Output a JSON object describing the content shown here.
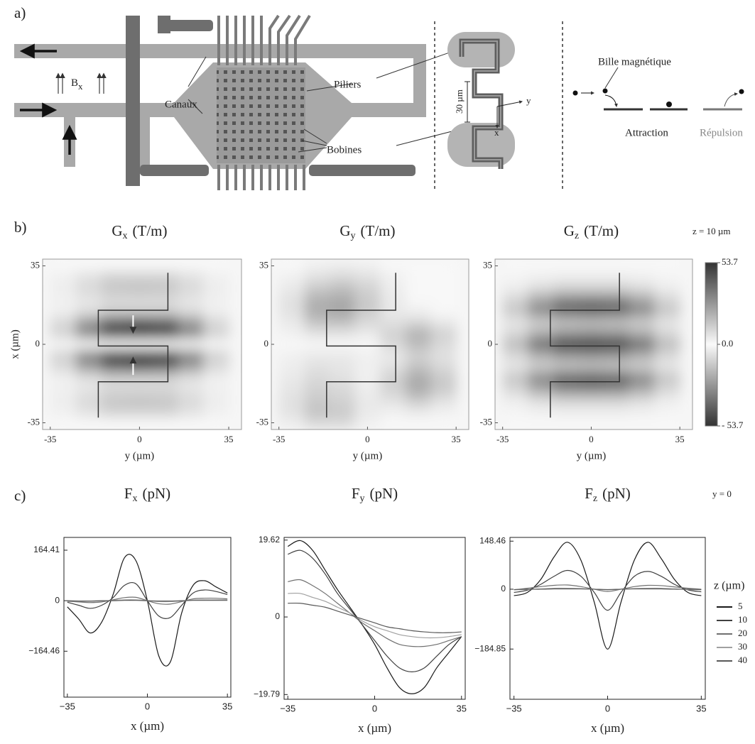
{
  "panel_a": {
    "label": "a)",
    "channels": "Canaux",
    "pillars": "Piliers",
    "coils": "Bobines",
    "field": {
      "symbol": "B",
      "sub": "x"
    },
    "scale": "30 µm",
    "axis_y": "y",
    "axis_x": "x",
    "bead": "Bille magnétique",
    "attraction": "Attraction",
    "repulsion": "Répulsion"
  },
  "panel_b": {
    "label": "b)",
    "annotation": "z = 10 µm",
    "colorbar": {
      "lim": [
        -53.7,
        53.7
      ],
      "ticks": [
        53.7,
        {
          "value": 0,
          "label": "0.0"
        },
        {
          "value": -53.7,
          "label": "- 53.7"
        }
      ]
    }
  },
  "panel_c": {
    "label": "c)",
    "annotation": "y = 0"
  },
  "chart_data": [
    {
      "type": "heatmap",
      "title": {
        "symbol": "G",
        "sub": "x",
        "unit": "(T/m)"
      },
      "xlabel": "y (µm)",
      "ylabel": "x (µm)",
      "x": [
        -30,
        -20,
        -10,
        0,
        10,
        20,
        30
      ],
      "y": [
        35,
        30,
        25,
        20,
        15,
        10,
        5,
        0,
        -5,
        -10,
        -15,
        -20,
        -25,
        -30,
        -35
      ],
      "z": [
        [
          0,
          0,
          0,
          0,
          0,
          0,
          0
        ],
        [
          2,
          6,
          10,
          10,
          10,
          6,
          2
        ],
        [
          3,
          8,
          13,
          14,
          13,
          8,
          3
        ],
        [
          2,
          5,
          8,
          8,
          8,
          5,
          2
        ],
        [
          -2,
          -6,
          -10,
          -10,
          -10,
          -6,
          -2
        ],
        [
          -8,
          -24,
          -38,
          -40,
          -38,
          -24,
          -8
        ],
        [
          -10,
          -30,
          -48,
          -50,
          -48,
          -30,
          -10
        ],
        [
          0,
          0,
          0,
          0,
          0,
          0,
          0
        ],
        [
          10,
          30,
          48,
          50,
          48,
          30,
          10
        ],
        [
          8,
          24,
          38,
          40,
          38,
          24,
          8
        ],
        [
          2,
          6,
          10,
          10,
          10,
          6,
          2
        ],
        [
          -2,
          -5,
          -8,
          -8,
          -8,
          -5,
          -2
        ],
        [
          -3,
          -8,
          -13,
          -14,
          -13,
          -8,
          -3
        ],
        [
          -2,
          -6,
          -10,
          -10,
          -10,
          -6,
          -2
        ],
        [
          0,
          0,
          0,
          0,
          0,
          0,
          0
        ]
      ],
      "xlim": [
        -38,
        40
      ],
      "ylim": [
        -38,
        38
      ],
      "xticks": [
        -35,
        0,
        35
      ],
      "yticks": [
        35,
        0,
        -35
      ]
    },
    {
      "type": "heatmap",
      "title": {
        "symbol": "G",
        "sub": "y",
        "unit": "(T/m)"
      },
      "xlabel": "y (µm)",
      "x": [
        -30,
        -20,
        -10,
        0,
        10,
        20,
        30
      ],
      "y": [
        35,
        30,
        25,
        20,
        15,
        10,
        5,
        0,
        -5,
        -10,
        -15,
        -20,
        -25,
        -30,
        -35
      ],
      "z": [
        [
          0,
          2,
          3,
          2,
          0,
          0,
          0
        ],
        [
          2,
          6,
          8,
          6,
          2,
          0,
          0
        ],
        [
          4,
          12,
          15,
          10,
          3,
          0,
          0
        ],
        [
          6,
          18,
          20,
          12,
          4,
          0,
          0
        ],
        [
          6,
          20,
          22,
          12,
          4,
          2,
          0
        ],
        [
          4,
          14,
          15,
          8,
          6,
          8,
          4
        ],
        [
          2,
          6,
          6,
          4,
          10,
          18,
          10
        ],
        [
          0,
          0,
          0,
          0,
          8,
          16,
          8
        ],
        [
          -2,
          -4,
          -4,
          -2,
          4,
          10,
          6
        ],
        [
          -3,
          -6,
          -5,
          -2,
          6,
          14,
          8
        ],
        [
          -4,
          -8,
          -6,
          -2,
          10,
          20,
          12
        ],
        [
          -5,
          -10,
          -8,
          -3,
          10,
          20,
          12
        ],
        [
          -6,
          -12,
          -10,
          -4,
          6,
          12,
          6
        ],
        [
          -6,
          -14,
          -12,
          -4,
          2,
          4,
          2
        ],
        [
          -3,
          -8,
          -8,
          -2,
          0,
          0,
          0
        ]
      ],
      "xlim": [
        -38,
        40
      ],
      "ylim": [
        -38,
        38
      ],
      "xticks": [
        -35,
        0,
        35
      ],
      "yticks": [
        35,
        0,
        -35
      ]
    },
    {
      "type": "heatmap",
      "title": {
        "symbol": "G",
        "sub": "z",
        "unit": "(T/m)"
      },
      "xlabel": "y (µm)",
      "x": [
        -30,
        -20,
        -10,
        0,
        10,
        20,
        30
      ],
      "y": [
        35,
        30,
        25,
        20,
        15,
        10,
        5,
        0,
        -5,
        -10,
        -15,
        -20,
        -25,
        -30,
        -35
      ],
      "z": [
        [
          0,
          0,
          0,
          0,
          0,
          0,
          0
        ],
        [
          1,
          2,
          3,
          3,
          3,
          2,
          1
        ],
        [
          3,
          7,
          10,
          10,
          10,
          7,
          3
        ],
        [
          -9,
          -21,
          -29,
          -30,
          -29,
          -21,
          -9
        ],
        [
          -13,
          -29,
          -40,
          -42,
          -40,
          -29,
          -13
        ],
        [
          -5,
          -11,
          -14,
          -15,
          -14,
          -11,
          -5
        ],
        [
          8,
          18,
          24,
          25,
          24,
          18,
          8
        ],
        [
          16,
          37,
          50,
          53,
          50,
          37,
          16
        ],
        [
          8,
          18,
          24,
          25,
          24,
          18,
          8
        ],
        [
          -5,
          -11,
          -14,
          -15,
          -14,
          -11,
          -5
        ],
        [
          -13,
          -29,
          -40,
          -42,
          -40,
          -29,
          -13
        ],
        [
          -9,
          -21,
          -29,
          -30,
          -29,
          -21,
          -9
        ],
        [
          3,
          7,
          10,
          10,
          10,
          7,
          3
        ],
        [
          1,
          2,
          3,
          3,
          3,
          2,
          1
        ],
        [
          0,
          0,
          0,
          0,
          0,
          0,
          0
        ]
      ],
      "xlim": [
        -38,
        40
      ],
      "ylim": [
        -38,
        38
      ],
      "xticks": [
        -35,
        0,
        35
      ],
      "yticks": [
        35,
        0,
        -35
      ]
    },
    {
      "type": "line",
      "title": {
        "symbol": "F",
        "sub": "x",
        "unit": "(pN)"
      },
      "xlabel": "x (µm)",
      "x": [
        -35,
        -30,
        -25,
        -20,
        -15,
        -10,
        -5,
        0,
        5,
        10,
        15,
        20,
        25,
        30,
        35
      ],
      "series": [
        {
          "color": "#1a1a1a",
          "values": [
            -20,
            -60,
            -105,
            -70,
            20,
            140,
            130,
            0,
            -180,
            -200,
            -40,
            50,
            65,
            45,
            25
          ]
        },
        {
          "color": "#404040",
          "values": [
            -5,
            -15,
            -25,
            -15,
            10,
            50,
            55,
            0,
            -50,
            -55,
            -15,
            25,
            35,
            30,
            20
          ]
        },
        {
          "color": "#707070",
          "values": [
            -2,
            -4,
            -6,
            -4,
            3,
            10,
            11,
            0,
            -10,
            -11,
            -3,
            6,
            8,
            8,
            6
          ]
        },
        {
          "color": "#a0a0a0",
          "values": [
            -1,
            -2,
            -2,
            -1,
            1,
            3,
            3,
            0,
            -3,
            -3,
            -1,
            2,
            3,
            3,
            3
          ]
        },
        {
          "color": "#585858",
          "values": [
            0,
            -1,
            -1,
            0,
            0,
            1,
            1,
            0,
            -1,
            -1,
            0,
            1,
            1,
            1,
            1
          ]
        }
      ],
      "xlim": [
        -36.5,
        36.5
      ],
      "ylim": [
        -314,
        206
      ],
      "xticks": [
        {
          "value": -35,
          "label": "−35"
        },
        0,
        35
      ],
      "yticks": [
        164.41,
        0,
        {
          "value": -164.46,
          "label": "−164.46"
        }
      ]
    },
    {
      "type": "line",
      "title": {
        "symbol": "F",
        "sub": "y",
        "unit": "(pN)"
      },
      "xlabel": "x (µm)",
      "x": [
        -35,
        -30,
        -25,
        -20,
        -15,
        -10,
        -5,
        0,
        5,
        10,
        15,
        20,
        25,
        30,
        35
      ],
      "series": [
        {
          "color": "#1a1a1a",
          "values": [
            18,
            19.5,
            17,
            12,
            7,
            2.5,
            -2,
            -7,
            -13,
            -18,
            -19.6,
            -18,
            -13,
            -9,
            -5
          ]
        },
        {
          "color": "#404040",
          "values": [
            16,
            17,
            15,
            11,
            6,
            2,
            -2,
            -6,
            -10,
            -13,
            -14,
            -13,
            -10,
            -7,
            -5
          ]
        },
        {
          "color": "#707070",
          "values": [
            9,
            9.5,
            8,
            6,
            3.5,
            1,
            -1.5,
            -3.5,
            -5.5,
            -7,
            -7.5,
            -7.5,
            -7,
            -6,
            -5
          ]
        },
        {
          "color": "#a0a0a0",
          "values": [
            6,
            6,
            5,
            4,
            2.5,
            1,
            -1,
            -2.5,
            -3.5,
            -4.5,
            -5,
            -5.3,
            -5.3,
            -5,
            -4.5
          ]
        },
        {
          "color": "#585858",
          "values": [
            3.5,
            3.5,
            3,
            2.5,
            1.5,
            0.5,
            -0.5,
            -1.5,
            -2.5,
            -3,
            -3.5,
            -3.8,
            -4,
            -4,
            -3.8
          ]
        }
      ],
      "xlim": [
        -36.5,
        36.5
      ],
      "ylim": [
        -21,
        20.3
      ],
      "xticks": [
        {
          "value": -35,
          "label": "−35"
        },
        0,
        35
      ],
      "yticks": [
        19.62,
        0,
        {
          "value": -19.79,
          "label": "−19.79"
        }
      ]
    },
    {
      "type": "line",
      "title": {
        "symbol": "F",
        "sub": "z",
        "unit": "(pN)"
      },
      "xlabel": "x (µm)",
      "legend": "right",
      "legend_title": "z (µm)",
      "x": [
        -35,
        -30,
        -25,
        -20,
        -15,
        -10,
        -5,
        0,
        5,
        10,
        15,
        20,
        25,
        30,
        35
      ],
      "series": [
        {
          "name": "5",
          "color": "#1a1a1a",
          "values": [
            -20,
            -10,
            30,
            100,
            145,
            90,
            -40,
            -185,
            -40,
            90,
            145,
            95,
            30,
            -10,
            -20
          ]
        },
        {
          "name": "10",
          "color": "#404040",
          "values": [
            -10,
            -3,
            15,
            40,
            58,
            40,
            -10,
            -65,
            -10,
            40,
            55,
            40,
            15,
            -2,
            -8
          ]
        },
        {
          "name": "20",
          "color": "#707070",
          "values": [
            -2,
            3,
            8,
            12,
            13,
            8,
            0,
            -7,
            0,
            8,
            12,
            11,
            7,
            3,
            0
          ]
        },
        {
          "name": "30",
          "color": "#a0a0a0",
          "values": [
            -2,
            -1,
            1,
            3,
            3,
            2,
            0,
            -2,
            0,
            2,
            3,
            3,
            1,
            -1,
            -2
          ]
        },
        {
          "name": "40",
          "color": "#585858",
          "values": [
            -1,
            0,
            0,
            1,
            1,
            1,
            0,
            -1,
            0,
            1,
            1,
            1,
            0,
            0,
            -1
          ]
        }
      ],
      "xlim": [
        -36.5,
        36.5
      ],
      "ylim": [
        -340,
        160
      ],
      "xticks": [
        {
          "value": -35,
          "label": "−35"
        },
        0,
        35
      ],
      "yticks": [
        148.46,
        0,
        {
          "value": -184.85,
          "label": "−184.85"
        }
      ]
    }
  ]
}
